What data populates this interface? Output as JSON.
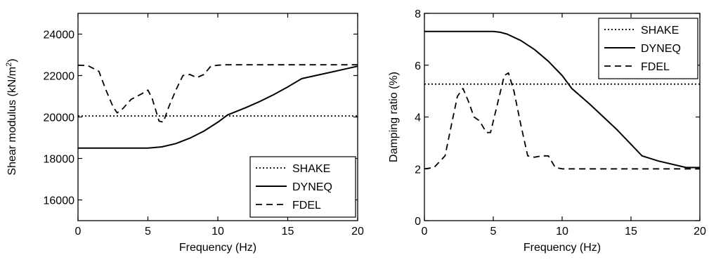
{
  "chart_data": [
    {
      "type": "line",
      "xlabel": "Frequency (Hz)",
      "ylabel_main": "Shear modulus (kN/m",
      "ylabel_sup": "2",
      "ylabel_close": ")",
      "xlim": [
        0,
        20
      ],
      "ylim": [
        15000,
        25000
      ],
      "xticks": [
        0,
        5,
        10,
        15,
        20
      ],
      "xtick_labels": [
        "0",
        "5",
        "10",
        "15",
        "20"
      ],
      "yticks": [
        16000,
        18000,
        20000,
        22000,
        24000
      ],
      "ytick_labels": [
        "16000",
        "18000",
        "20000",
        "22000",
        "24000"
      ],
      "legend_position": "bottom-right",
      "series": [
        {
          "name": "SHAKE",
          "style": "dotted",
          "x": [
            0,
            20
          ],
          "y": [
            20050,
            20050
          ]
        },
        {
          "name": "DYNEQ",
          "style": "solid",
          "x": [
            0,
            5,
            6,
            7,
            8,
            9,
            10,
            10.7,
            12,
            13,
            14,
            15,
            16,
            17,
            18,
            19,
            20
          ],
          "y": [
            18500,
            18500,
            18560,
            18720,
            18980,
            19320,
            19750,
            20100,
            20450,
            20750,
            21080,
            21450,
            21850,
            22000,
            22150,
            22300,
            22450
          ]
        },
        {
          "name": "FDEL",
          "style": "dashed",
          "x": [
            0,
            0.7,
            1.5,
            2,
            2.5,
            2.8,
            3.2,
            3.8,
            4.5,
            5,
            5.3,
            5.8,
            6.1,
            6.5,
            7,
            7.5,
            8,
            8.5,
            9,
            9.5,
            10,
            10.5,
            12,
            15,
            20
          ],
          "y": [
            22500,
            22480,
            22200,
            21300,
            20500,
            20200,
            20400,
            20850,
            21100,
            21300,
            20900,
            19800,
            19750,
            20500,
            21300,
            22000,
            22050,
            21900,
            22050,
            22450,
            22500,
            22520,
            22520,
            22520,
            22520
          ]
        }
      ]
    },
    {
      "type": "line",
      "xlabel": "Frequency (Hz)",
      "ylabel": "Damping ratio (%)",
      "xlim": [
        0,
        20
      ],
      "ylim": [
        0,
        8
      ],
      "xticks": [
        0,
        5,
        10,
        15,
        20
      ],
      "xtick_labels": [
        "0",
        "5",
        "10",
        "15",
        "20"
      ],
      "yticks": [
        0,
        2,
        4,
        6,
        8
      ],
      "ytick_labels": [
        "0",
        "2",
        "4",
        "6",
        "8"
      ],
      "legend_position": "top-right",
      "series": [
        {
          "name": "SHAKE",
          "style": "dotted",
          "x": [
            0,
            20
          ],
          "y": [
            5.27,
            5.27
          ]
        },
        {
          "name": "DYNEQ",
          "style": "solid",
          "x": [
            0,
            5,
            5.5,
            6,
            7,
            8,
            9,
            10,
            10.7,
            12,
            14,
            15.8,
            17,
            19,
            20
          ],
          "y": [
            7.3,
            7.3,
            7.27,
            7.2,
            6.95,
            6.6,
            6.15,
            5.6,
            5.1,
            4.5,
            3.5,
            2.5,
            2.3,
            2.05,
            2.05
          ]
        },
        {
          "name": "FDEL",
          "style": "dashed",
          "x": [
            0,
            0.7,
            1.5,
            2,
            2.4,
            2.8,
            3.2,
            3.6,
            4,
            4.5,
            4.8,
            5.3,
            5.8,
            6.1,
            6.5,
            7,
            7.5,
            8,
            8.5,
            9,
            9.5,
            10,
            12,
            15,
            20
          ],
          "y": [
            2.0,
            2.05,
            2.5,
            3.8,
            4.8,
            5.1,
            4.6,
            4.0,
            3.85,
            3.4,
            3.4,
            4.5,
            5.6,
            5.7,
            5.0,
            3.7,
            2.5,
            2.45,
            2.5,
            2.5,
            2.05,
            2.0,
            2.0,
            2.0,
            2.0
          ]
        }
      ]
    }
  ]
}
